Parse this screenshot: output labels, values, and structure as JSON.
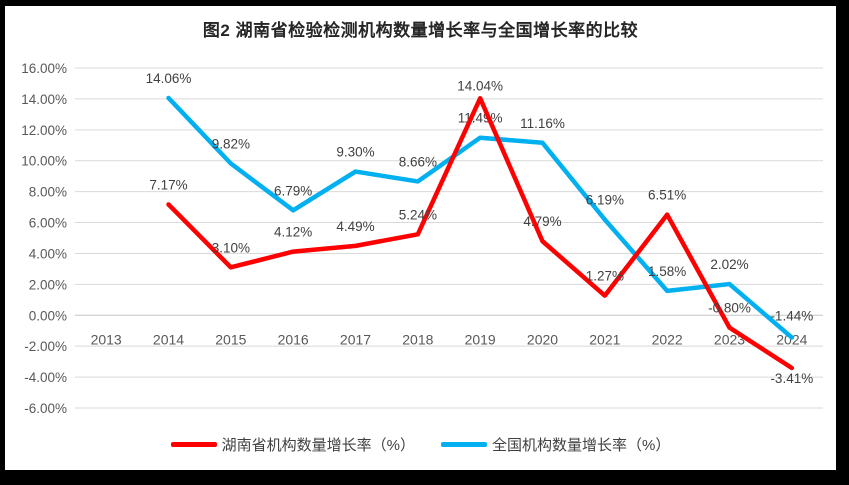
{
  "chart_data": {
    "type": "line",
    "title": "图2 湖南省检验检测机构数量增长率与全国增长率的比较",
    "categories": [
      "2013",
      "2014",
      "2015",
      "2016",
      "2017",
      "2018",
      "2019",
      "2020",
      "2021",
      "2022",
      "2023",
      "2024"
    ],
    "series": [
      {
        "name": "湖南省机构数量增长率（%）",
        "color": "#FF0000",
        "values": [
          null,
          7.17,
          3.1,
          4.12,
          4.49,
          5.24,
          14.04,
          4.79,
          1.27,
          6.51,
          -0.8,
          -3.41
        ],
        "labels": [
          null,
          "7.17%",
          "3.10%",
          "4.12%",
          "4.49%",
          "5.24%",
          "14.04%",
          "4.79%",
          "1.27%",
          "6.51%",
          "-0.80%",
          "-3.41%"
        ],
        "label_offsets": {
          "6": [
            0,
            7
          ],
          "11": [
            0,
            30
          ]
        }
      },
      {
        "name": "全国机构数量增长率（%）",
        "color": "#00B0F0",
        "values": [
          null,
          14.06,
          9.82,
          6.79,
          9.3,
          8.66,
          11.49,
          11.16,
          6.19,
          1.58,
          2.02,
          -1.44
        ],
        "labels": [
          null,
          "14.06%",
          "9.82%",
          "6.79%",
          "9.30%",
          "8.66%",
          "11.49%",
          "11.16%",
          "6.19%",
          "1.58%",
          "2.02%",
          "-1.44%"
        ],
        "label_offsets": {
          "11": [
            0,
            -2
          ]
        }
      }
    ],
    "y_axis": {
      "min": -6,
      "max": 16,
      "step": 2,
      "tick_labels": [
        "16.00%",
        "14.00%",
        "12.00%",
        "10.00%",
        "8.00%",
        "6.00%",
        "4.00%",
        "2.00%",
        "0.00%",
        "-2.00%",
        "-4.00%",
        "-6.00%"
      ]
    },
    "grid": true,
    "legend_position": "bottom",
    "colors": {
      "title": "#262626",
      "axis_text": "#595959",
      "data_label": "#404040",
      "gridline": "#D9D9D9",
      "zero_line": "#C6C6C6",
      "plot_background": "#FFFFFF",
      "frame_border": "#000000"
    }
  }
}
